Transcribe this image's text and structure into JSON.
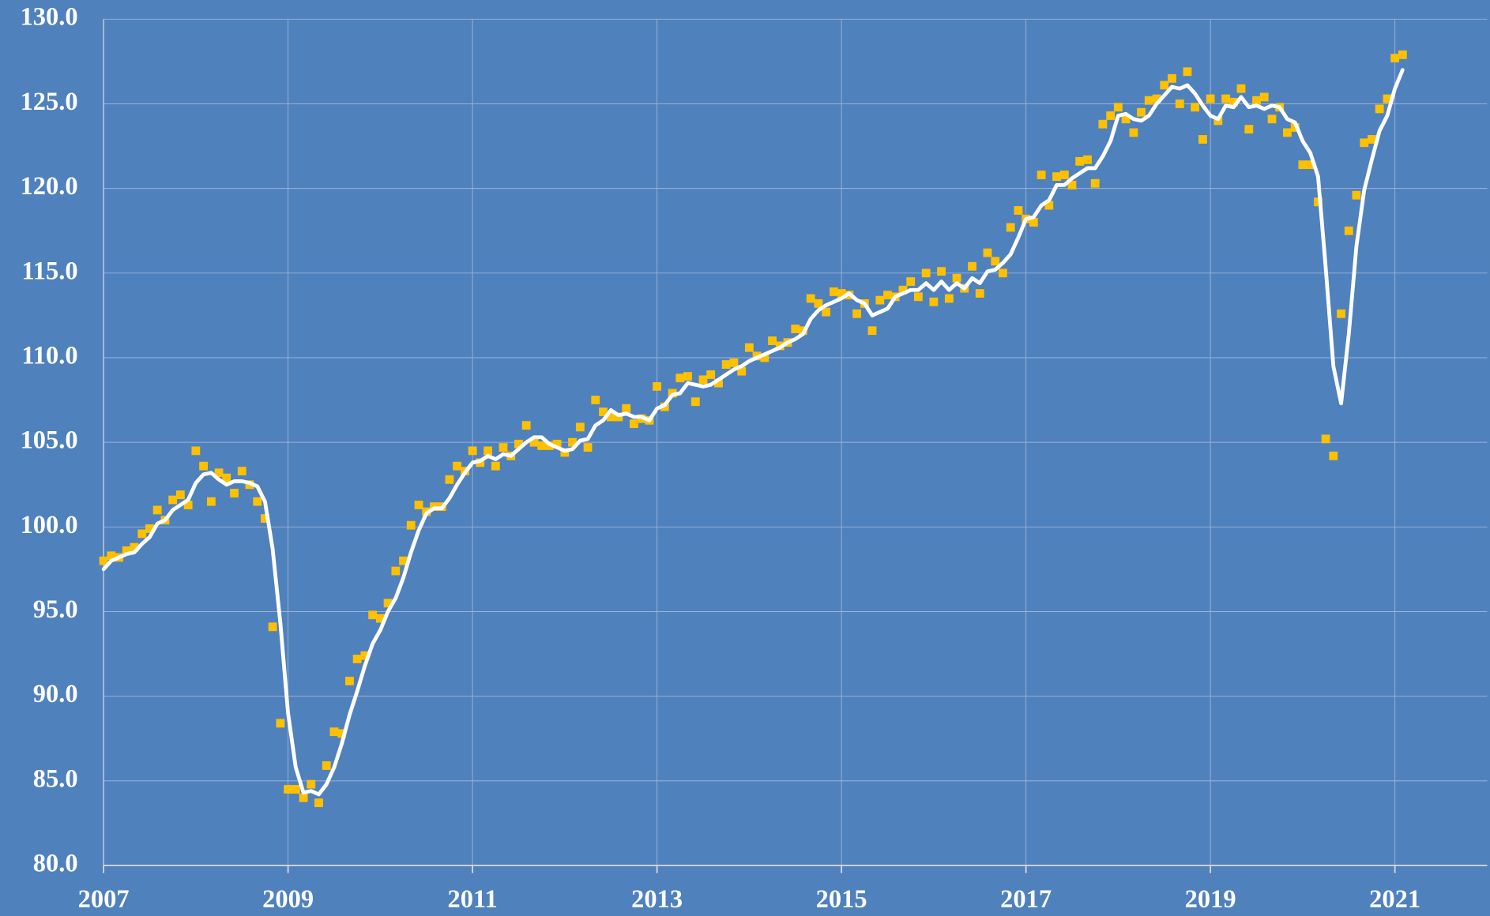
{
  "chart_data": {
    "type": "line",
    "x": [
      2007,
      2007.083,
      2007.167,
      2007.25,
      2007.333,
      2007.417,
      2007.5,
      2007.583,
      2007.667,
      2007.75,
      2007.833,
      2007.917,
      2008,
      2008.083,
      2008.167,
      2008.25,
      2008.333,
      2008.417,
      2008.5,
      2008.583,
      2008.667,
      2008.75,
      2008.833,
      2008.917,
      2009,
      2009.083,
      2009.167,
      2009.25,
      2009.333,
      2009.417,
      2009.5,
      2009.583,
      2009.667,
      2009.75,
      2009.833,
      2009.917,
      2010,
      2010.083,
      2010.167,
      2010.25,
      2010.333,
      2010.417,
      2010.5,
      2010.583,
      2010.667,
      2010.75,
      2010.833,
      2010.917,
      2011,
      2011.083,
      2011.167,
      2011.25,
      2011.333,
      2011.417,
      2011.5,
      2011.583,
      2011.667,
      2011.75,
      2011.833,
      2011.917,
      2012,
      2012.083,
      2012.167,
      2012.25,
      2012.333,
      2012.417,
      2012.5,
      2012.583,
      2012.667,
      2012.75,
      2012.833,
      2012.917,
      2013,
      2013.083,
      2013.167,
      2013.25,
      2013.333,
      2013.417,
      2013.5,
      2013.583,
      2013.667,
      2013.75,
      2013.833,
      2013.917,
      2014,
      2014.083,
      2014.167,
      2014.25,
      2014.333,
      2014.417,
      2014.5,
      2014.583,
      2014.667,
      2014.75,
      2014.833,
      2014.917,
      2015,
      2015.083,
      2015.167,
      2015.25,
      2015.333,
      2015.417,
      2015.5,
      2015.583,
      2015.667,
      2015.75,
      2015.833,
      2015.917,
      2016,
      2016.083,
      2016.167,
      2016.25,
      2016.333,
      2016.417,
      2016.5,
      2016.583,
      2016.667,
      2016.75,
      2016.833,
      2016.917,
      2017,
      2017.083,
      2017.167,
      2017.25,
      2017.333,
      2017.417,
      2017.5,
      2017.583,
      2017.667,
      2017.75,
      2017.833,
      2017.917,
      2018,
      2018.083,
      2018.167,
      2018.25,
      2018.333,
      2018.417,
      2018.5,
      2018.583,
      2018.667,
      2018.75,
      2018.833,
      2018.917,
      2019,
      2019.083,
      2019.167,
      2019.25,
      2019.333,
      2019.417,
      2019.5,
      2019.583,
      2019.667,
      2019.75,
      2019.833,
      2019.917,
      2020,
      2020.083,
      2020.167,
      2020.25,
      2020.333,
      2020.417,
      2020.5,
      2020.583,
      2020.667,
      2020.75,
      2020.833,
      2020.917,
      2021,
      2021.083
    ],
    "series": [
      {
        "type": "scatter",
        "color": "#ffc000",
        "values": [
          98.0,
          98.3,
          98.2,
          98.6,
          98.8,
          99.6,
          99.9,
          101.0,
          100.4,
          101.6,
          101.9,
          101.3,
          104.5,
          103.6,
          101.5,
          103.2,
          102.9,
          102.0,
          103.3,
          102.5,
          101.5,
          100.5,
          94.1,
          88.4,
          84.5,
          84.5,
          84.0,
          84.8,
          83.7,
          85.9,
          87.9,
          87.8,
          90.9,
          92.2,
          92.4,
          94.8,
          94.6,
          95.5,
          97.4,
          98.0,
          100.1,
          101.3,
          100.9,
          101.2,
          101.2,
          102.8,
          103.6,
          103.3,
          104.5,
          103.8,
          104.5,
          103.6,
          104.7,
          104.2,
          104.9,
          106.0,
          105.0,
          104.8,
          104.8,
          104.9,
          104.4,
          105.0,
          105.9,
          104.7,
          107.5,
          106.8,
          106.5,
          106.5,
          107.0,
          106.1,
          106.4,
          106.3,
          108.3,
          107.1,
          107.9,
          108.8,
          108.9,
          107.4,
          108.7,
          109.0,
          108.5,
          109.6,
          109.7,
          109.2,
          110.6,
          110.1,
          110.0,
          111.0,
          110.7,
          110.9,
          111.7,
          111.6,
          113.5,
          113.2,
          112.7,
          113.9,
          113.8,
          113.7,
          112.6,
          113.2,
          111.6,
          113.4,
          113.7,
          113.6,
          114.0,
          114.5,
          113.6,
          115.0,
          113.3,
          115.1,
          113.5,
          114.7,
          114.1,
          115.4,
          113.8,
          116.2,
          115.7,
          115.0,
          117.7,
          118.7,
          118.2,
          118.0,
          120.8,
          119.0,
          120.7,
          120.8,
          120.2,
          121.6,
          121.7,
          120.3,
          123.8,
          124.3,
          124.8,
          124.1,
          123.3,
          124.5,
          125.2,
          125.3,
          126.1,
          126.5,
          125.0,
          126.9,
          124.8,
          122.9,
          125.3,
          124.0,
          125.3,
          125.1,
          125.9,
          123.5,
          125.2,
          125.4,
          124.1,
          124.8,
          123.3,
          123.6,
          121.4,
          121.4,
          119.2,
          105.2,
          104.2,
          112.6,
          117.5,
          119.6,
          122.7,
          122.9,
          124.7,
          125.3,
          127.7,
          127.9
        ]
      },
      {
        "type": "line",
        "color": "#ffffff",
        "values": [
          97.5,
          98.0,
          98.2,
          98.4,
          98.5,
          99.0,
          99.4,
          100.2,
          100.4,
          101.0,
          101.3,
          101.6,
          102.6,
          103.1,
          103.2,
          102.8,
          102.5,
          102.7,
          102.7,
          102.6,
          102.4,
          101.5,
          98.7,
          94.3,
          89.0,
          85.8,
          84.3,
          84.4,
          84.2,
          84.8,
          85.8,
          87.2,
          88.9,
          90.3,
          91.8,
          93.1,
          93.9,
          95.0,
          95.8,
          97.0,
          98.5,
          99.8,
          100.8,
          101.1,
          101.1,
          101.7,
          102.5,
          103.2,
          103.8,
          103.9,
          104.2,
          104.0,
          104.3,
          104.2,
          104.6,
          105.0,
          105.3,
          105.3,
          104.9,
          104.7,
          104.5,
          104.6,
          105.1,
          105.2,
          106.0,
          106.3,
          106.9,
          106.6,
          106.7,
          106.5,
          106.5,
          106.3,
          107.0,
          107.2,
          107.8,
          107.9,
          108.5,
          108.4,
          108.3,
          108.4,
          108.7,
          109.0,
          109.3,
          109.5,
          109.8,
          110.0,
          110.2,
          110.4,
          110.6,
          110.9,
          111.1,
          111.4,
          112.3,
          112.8,
          113.1,
          113.3,
          113.5,
          113.8,
          113.4,
          113.2,
          112.5,
          112.7,
          112.9,
          113.6,
          113.8,
          114.0,
          114.0,
          114.4,
          114.0,
          114.5,
          114.0,
          114.4,
          114.1,
          114.7,
          114.4,
          115.1,
          115.2,
          115.6,
          116.1,
          117.1,
          118.2,
          118.3,
          119.0,
          119.3,
          120.2,
          120.2,
          120.6,
          120.9,
          121.2,
          121.2,
          121.9,
          122.8,
          124.3,
          124.4,
          124.1,
          124.0,
          124.3,
          125.0,
          125.5,
          126.0,
          125.9,
          126.1,
          125.6,
          124.9,
          124.3,
          124.1,
          124.9,
          124.8,
          125.4,
          124.8,
          124.9,
          124.7,
          124.9,
          124.8,
          124.1,
          123.9,
          122.8,
          122.1,
          120.7,
          115.3,
          109.5,
          107.3,
          111.4,
          116.6,
          119.9,
          121.7,
          123.4,
          124.3,
          125.9,
          127.0
        ]
      }
    ],
    "xlim": [
      2007,
      2022
    ],
    "xticks": [
      2007,
      2009,
      2011,
      2013,
      2015,
      2017,
      2019,
      2021
    ],
    "ylim": [
      80,
      130
    ],
    "yticks": [
      {
        "value": 80,
        "label": "80.0"
      },
      {
        "value": 85,
        "label": "85.0"
      },
      {
        "value": 90,
        "label": "90.0"
      },
      {
        "value": 95,
        "label": "95.0"
      },
      {
        "value": 100,
        "label": "100.0"
      },
      {
        "value": 105,
        "label": "105.0"
      },
      {
        "value": 110,
        "label": "110.0"
      },
      {
        "value": 115,
        "label": "115.0"
      },
      {
        "value": 120,
        "label": "120.0"
      },
      {
        "value": 125,
        "label": "125.0"
      },
      {
        "value": 130,
        "label": "130.0"
      }
    ],
    "grid": true
  }
}
